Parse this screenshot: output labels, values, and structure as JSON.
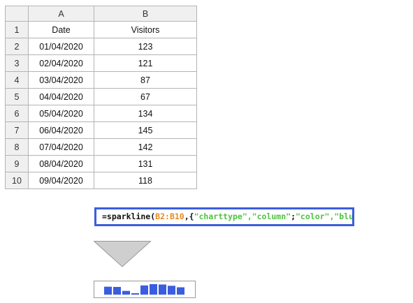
{
  "sheet": {
    "columns": [
      "A",
      "B"
    ],
    "row_numbers": [
      "1",
      "2",
      "3",
      "4",
      "5",
      "6",
      "7",
      "8",
      "9",
      "10"
    ],
    "header_row": {
      "a": "Date",
      "b": "Visitors"
    },
    "rows": [
      {
        "a": "01/04/2020",
        "b": "123"
      },
      {
        "a": "02/04/2020",
        "b": "121"
      },
      {
        "a": "03/04/2020",
        "b": "87"
      },
      {
        "a": "04/04/2020",
        "b": "67"
      },
      {
        "a": "05/04/2020",
        "b": "134"
      },
      {
        "a": "06/04/2020",
        "b": "145"
      },
      {
        "a": "07/04/2020",
        "b": "142"
      },
      {
        "a": "08/04/2020",
        "b": "131"
      },
      {
        "a": "09/04/2020",
        "b": "118"
      }
    ]
  },
  "formula": {
    "prefix": "=sparkline(",
    "range": "B2:B10",
    "sep1": ",{",
    "arg1": "\"charttype\",\"column\"",
    "sep2": ";",
    "arg2": "\"color\",\"blue\"",
    "suffix": "})"
  },
  "arrow_icon": "down-triangle-icon",
  "sparkline": {
    "type": "column",
    "values": [
      123,
      121,
      87,
      67,
      134,
      145,
      142,
      131,
      118
    ],
    "color": "#3b5de0"
  },
  "colors": {
    "formula_border": "#3b5de0",
    "range_text": "#e8891e",
    "string_text": "#4fc33f",
    "header_bg": "#f0f0f0",
    "grid": "#b4b4b4"
  }
}
